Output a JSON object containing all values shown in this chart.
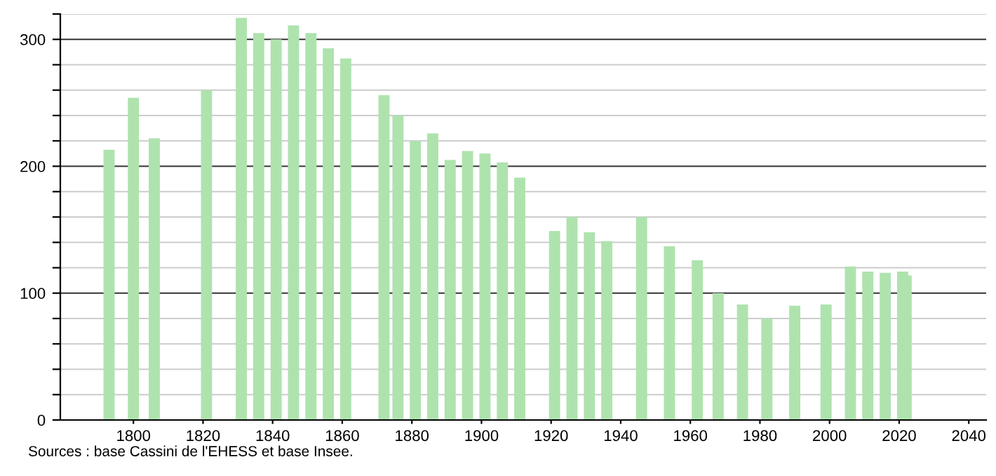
{
  "chart_data": {
    "type": "bar",
    "color": "#aee3ae",
    "x": [
      1793,
      1800,
      1806,
      1821,
      1831,
      1836,
      1841,
      1846,
      1851,
      1856,
      1861,
      1872,
      1876,
      1881,
      1886,
      1891,
      1896,
      1901,
      1906,
      1911,
      1921,
      1926,
      1931,
      1936,
      1946,
      1954,
      1962,
      1968,
      1975,
      1982,
      1990,
      1999,
      2006,
      2011,
      2016,
      2021,
      2022
    ],
    "values": [
      213,
      254,
      222,
      260,
      317,
      305,
      300,
      311,
      305,
      293,
      285,
      256,
      240,
      220,
      226,
      205,
      212,
      210,
      203,
      191,
      149,
      160,
      148,
      141,
      160,
      137,
      126,
      100,
      91,
      80,
      90,
      91,
      121,
      117,
      116,
      117,
      114
    ],
    "xlim": [
      1779,
      2045
    ],
    "xticks": [
      1800,
      1820,
      1840,
      1860,
      1880,
      1900,
      1920,
      1940,
      1960,
      1980,
      2000,
      2020,
      2040
    ],
    "ylim": [
      0,
      320
    ],
    "yticks": [
      0,
      {
        "value": 20,
        "label": null
      },
      {
        "value": 40,
        "label": null
      },
      {
        "value": 60,
        "label": null
      },
      {
        "value": 80,
        "label": null
      },
      100,
      {
        "value": 120,
        "label": null
      },
      {
        "value": 140,
        "label": null
      },
      {
        "value": 160,
        "label": null
      },
      {
        "value": 180,
        "label": null
      },
      200,
      {
        "value": 220,
        "label": null
      },
      {
        "value": 240,
        "label": null
      },
      {
        "value": 260,
        "label": null
      },
      {
        "value": 280,
        "label": null
      },
      300,
      {
        "value": 320,
        "label": null
      }
    ],
    "grid": "y",
    "annotations": [
      "Sources : base Cassini de l'EHESS et base Insee."
    ]
  }
}
